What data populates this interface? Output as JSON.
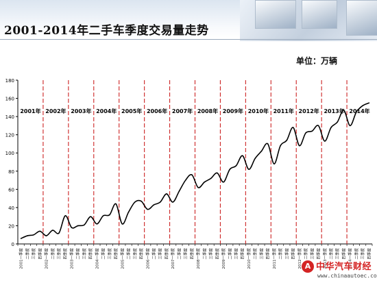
{
  "page": {
    "title": "2001-2014年二手车季度交易量走势",
    "unit": "单位：万辆"
  },
  "watermark": {
    "brand": "中华汽车财经",
    "url": "www.chinaautoec.com",
    "logo_glyph": "A"
  },
  "chart_data": {
    "type": "line",
    "ylim": [
      0,
      180
    ],
    "yticks": [
      0,
      20,
      40,
      60,
      80,
      100,
      120,
      140,
      160,
      180
    ],
    "grid": false,
    "line_color": "#000000",
    "separator_color": "#cc2222",
    "years": [
      "2001年",
      "2002年",
      "2003年",
      "2004年",
      "2005年",
      "2006年",
      "2007年",
      "2008年",
      "2009年",
      "2010年",
      "2011年",
      "2012年",
      "2013年",
      "2014年"
    ],
    "quarter_labels": [
      "一季度",
      "二季度",
      "三季度",
      "四季度"
    ],
    "x_tick_labels": [
      "2001一季度",
      "二季度",
      "三季度",
      "四季度",
      "2002一季度",
      "二季度",
      "三季度",
      "四季度",
      "2003一季度",
      "二季度",
      "三季度",
      "四季度",
      "2004一季度",
      "二季度",
      "三季度",
      "四季度",
      "2005一季度",
      "二季度",
      "三季度",
      "四季度",
      "2006一季度",
      "二季度",
      "三季度",
      "四季度",
      "2007一季度",
      "二季度",
      "三季度",
      "四季度",
      "2008一季度",
      "二季度",
      "三季度",
      "四季度",
      "2009一季度",
      "二季度",
      "三季度",
      "四季度",
      "2010一季度",
      "二季度",
      "三季度",
      "四季度",
      "2011一季度",
      "二季度",
      "三季度",
      "四季度",
      "2012一季度",
      "二季度",
      "三季度",
      "四季度",
      "2013一季度",
      "二季度",
      "三季度",
      "四季度",
      "2014一季度",
      "二季度",
      "三季度",
      "四季度"
    ],
    "series": [
      {
        "values": [
          6,
          9,
          10,
          14,
          9,
          15,
          12,
          31,
          18,
          20,
          21,
          30,
          22,
          31,
          32,
          44,
          22,
          35,
          46,
          47,
          38,
          43,
          46,
          55,
          46,
          58,
          70,
          76,
          62,
          68,
          72,
          78,
          68,
          82,
          86,
          97,
          82,
          94,
          102,
          110,
          88,
          108,
          114,
          128,
          108,
          122,
          124,
          130,
          113,
          128,
          134,
          147,
          130,
          145,
          152,
          155
        ]
      }
    ]
  }
}
